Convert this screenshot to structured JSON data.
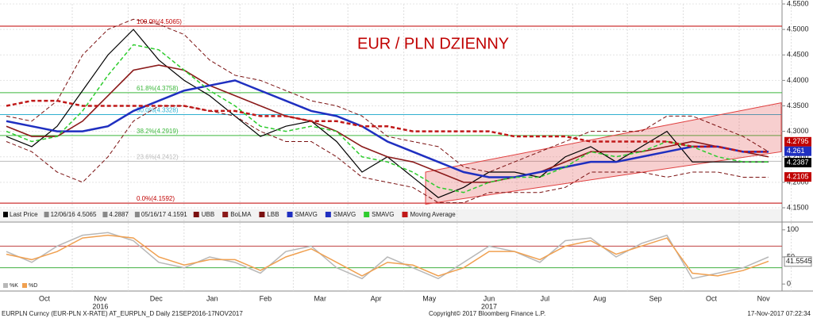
{
  "chart_data": [
    {
      "type": "line",
      "title": "EUR / PLN DZIENNY",
      "x": [
        0,
        2,
        4,
        6,
        8,
        10,
        12,
        14,
        16,
        18,
        20,
        22,
        24,
        26,
        28,
        30,
        32,
        34,
        36,
        38,
        40,
        42,
        44,
        46,
        48,
        50,
        52,
        54,
        56,
        58,
        60
      ],
      "xlim": [
        0,
        61
      ],
      "xticks": [
        {
          "value": 3,
          "label": "Oct"
        },
        {
          "value": 7.4,
          "label": "Nov"
        },
        {
          "value": 11.8,
          "label": "Dec"
        },
        {
          "value": 16.2,
          "label": "Jan"
        },
        {
          "value": 20.4,
          "label": "Feb"
        },
        {
          "value": 24.7,
          "label": "Mar"
        },
        {
          "value": 29.1,
          "label": "Apr"
        },
        {
          "value": 33.3,
          "label": "May"
        },
        {
          "value": 38,
          "label": "Jun"
        },
        {
          "value": 42.4,
          "label": "Jul"
        },
        {
          "value": 46.7,
          "label": "Aug"
        },
        {
          "value": 51.1,
          "label": "Sep"
        },
        {
          "value": 55.5,
          "label": "Oct"
        },
        {
          "value": 59.6,
          "label": "Nov"
        }
      ],
      "year_labels": [
        {
          "value": 7.4,
          "label": "2016"
        },
        {
          "value": 38,
          "label": "2017"
        }
      ],
      "ylim": [
        4.15,
        4.55
      ],
      "yticks": [
        {
          "value": 4.55,
          "label": "4.5500"
        },
        {
          "value": 4.5,
          "label": "4.5000"
        },
        {
          "value": 4.45,
          "label": "4.4500"
        },
        {
          "value": 4.4,
          "label": "4.4000"
        },
        {
          "value": 4.35,
          "label": "4.3500"
        },
        {
          "value": 4.3,
          "label": "4.3000"
        },
        {
          "value": 4.25,
          "label": "4.2500"
        },
        {
          "value": 4.2,
          "label": "4.2000"
        },
        {
          "value": 4.15,
          "label": "4.1500"
        }
      ],
      "grid": true,
      "series": [
        {
          "color": "#000000",
          "dash": false,
          "width": 1.2,
          "values": [
            4.29,
            4.27,
            4.31,
            4.38,
            4.45,
            4.5,
            4.44,
            4.4,
            4.37,
            4.33,
            4.29,
            4.31,
            4.32,
            4.28,
            4.22,
            4.25,
            4.21,
            4.17,
            4.19,
            4.22,
            4.22,
            4.21,
            4.25,
            4.27,
            4.24,
            4.27,
            4.3,
            4.24,
            4.24,
            4.24,
            4.24
          ]
        },
        {
          "color": "#7a1010",
          "dash": true,
          "width": 1,
          "values": [
            4.33,
            4.32,
            4.36,
            4.45,
            4.5,
            4.52,
            4.51,
            4.49,
            4.44,
            4.41,
            4.4,
            4.38,
            4.36,
            4.35,
            4.33,
            4.29,
            4.28,
            4.27,
            4.23,
            4.22,
            4.24,
            4.26,
            4.28,
            4.3,
            4.3,
            4.3,
            4.33,
            4.33,
            4.31,
            4.29,
            4.26
          ]
        },
        {
          "color": "#8b1a1a",
          "dash": false,
          "width": 1.6,
          "values": [
            4.31,
            4.29,
            4.29,
            4.32,
            4.37,
            4.42,
            4.43,
            4.42,
            4.39,
            4.37,
            4.35,
            4.33,
            4.32,
            4.3,
            4.27,
            4.25,
            4.24,
            4.22,
            4.2,
            4.2,
            4.21,
            4.22,
            4.24,
            4.26,
            4.26,
            4.26,
            4.27,
            4.28,
            4.27,
            4.26,
            4.25
          ]
        },
        {
          "color": "#7a1010",
          "dash": true,
          "width": 1,
          "values": [
            4.28,
            4.26,
            4.22,
            4.2,
            4.25,
            4.32,
            4.35,
            4.35,
            4.34,
            4.33,
            4.3,
            4.28,
            4.28,
            4.25,
            4.21,
            4.2,
            4.19,
            4.16,
            4.16,
            4.18,
            4.18,
            4.18,
            4.19,
            4.22,
            4.22,
            4.22,
            4.21,
            4.22,
            4.22,
            4.21,
            4.21
          ]
        },
        {
          "color": "#1f2fc0",
          "dash": false,
          "width": 2.5,
          "values": [
            4.32,
            4.31,
            4.3,
            4.3,
            4.31,
            4.34,
            4.36,
            4.38,
            4.39,
            4.4,
            4.38,
            4.36,
            4.34,
            4.33,
            4.31,
            4.28,
            4.26,
            4.24,
            4.22,
            4.21,
            4.21,
            4.22,
            4.23,
            4.24,
            4.24,
            4.25,
            4.26,
            4.27,
            4.27,
            4.26,
            4.26
          ]
        },
        {
          "color": "#2ecc2e",
          "dash": true,
          "width": 1.5,
          "values": [
            4.3,
            4.28,
            4.29,
            4.34,
            4.41,
            4.47,
            4.46,
            4.42,
            4.38,
            4.35,
            4.31,
            4.3,
            4.31,
            4.3,
            4.25,
            4.24,
            4.22,
            4.19,
            4.18,
            4.2,
            4.21,
            4.21,
            4.23,
            4.26,
            4.25,
            4.26,
            4.28,
            4.27,
            4.25,
            4.24,
            4.24
          ]
        },
        {
          "color": "#c01818",
          "dash": true,
          "width": 2.5,
          "values": [
            4.35,
            4.36,
            4.36,
            4.35,
            4.35,
            4.35,
            4.35,
            4.35,
            4.34,
            4.34,
            4.33,
            4.33,
            4.32,
            4.32,
            4.31,
            4.31,
            4.3,
            4.3,
            4.3,
            4.3,
            4.29,
            4.29,
            4.29,
            4.28,
            4.28,
            4.28,
            4.28,
            4.27,
            4.27,
            4.26,
            4.26
          ]
        }
      ],
      "channel": {
        "x": [
          33,
          61
        ],
        "upper": [
          4.22,
          4.356
        ],
        "lower": [
          4.157,
          4.26
        ],
        "color": "#e04040"
      },
      "levels": [
        {
          "value": 4.5065,
          "label": "100.0%(4.5065)",
          "color": "#c00000"
        },
        {
          "value": 4.3758,
          "label": "61.8%(4.3758)",
          "color": "#3cb83c"
        },
        {
          "value": 4.3328,
          "label": "50.0%(4.3328)",
          "color": "#30b0d0"
        },
        {
          "value": 4.2919,
          "label": "38.2%(4.2919)",
          "color": "#3cb83c"
        },
        {
          "value": 4.2412,
          "label": "23.6%(4.2412)",
          "color": "#bbbbbb"
        },
        {
          "value": 4.1592,
          "label": "0.0%(4.1592)",
          "color": "#c00000"
        }
      ],
      "price_labels": [
        {
          "value": 4.2795,
          "color": "#c00000"
        },
        {
          "value": 4.261,
          "color": "#1f2fc0"
        },
        {
          "value": 4.2387,
          "color": "#000000"
        },
        {
          "value": 4.2105,
          "color": "#c00000"
        }
      ],
      "info": [
        "Last Price",
        "12/06/16 4.5065",
        "4.2887",
        "05/16/17 4.1591"
      ],
      "legend": [
        {
          "label": "UBB",
          "color": "#7a1010"
        },
        {
          "label": "BoLMA",
          "color": "#8b1a1a"
        },
        {
          "label": "LBB",
          "color": "#7a1010"
        },
        {
          "label": "SMAVG",
          "color": "#1f2fc0"
        },
        {
          "label": "SMAVG",
          "color": "#1f2fc0"
        },
        {
          "label": "SMAVG",
          "color": "#2ecc2e"
        },
        {
          "label": "Moving Average",
          "color": "#c01818"
        }
      ]
    },
    {
      "type": "line",
      "ylim": [
        -10,
        110
      ],
      "yticks": [
        100,
        50,
        0
      ],
      "bands": [
        {
          "value": 70,
          "color": "#c04040"
        },
        {
          "value": 30,
          "color": "#40b040"
        }
      ],
      "series": [
        {
          "color": "#b8b8b8",
          "values": [
            60,
            40,
            70,
            90,
            95,
            80,
            40,
            30,
            50,
            40,
            20,
            60,
            70,
            30,
            10,
            50,
            30,
            10,
            40,
            70,
            60,
            40,
            80,
            85,
            50,
            75,
            90,
            10,
            20,
            30,
            50
          ]
        },
        {
          "color": "#f0a050",
          "values": [
            55,
            45,
            60,
            85,
            90,
            85,
            50,
            35,
            45,
            45,
            25,
            50,
            65,
            40,
            15,
            40,
            35,
            15,
            30,
            60,
            60,
            45,
            70,
            80,
            55,
            70,
            85,
            20,
            15,
            25,
            42
          ]
        }
      ],
      "last_label": {
        "value": 41.5545,
        "label": "41.5545"
      },
      "legend": [
        {
          "label": "%K",
          "color": "#b8b8b8"
        },
        {
          "label": "%D",
          "color": "#f0a050"
        }
      ]
    }
  ],
  "footer": [
    "EURPLN Curncy (EUR-PLN X-RATE) AT_EURPLN_D  Daily 21SEP2016-17NOV2017",
    "Copyright© 2017 Bloomberg Finance L.P.",
    "17-Nov-2017 07:22:34"
  ]
}
